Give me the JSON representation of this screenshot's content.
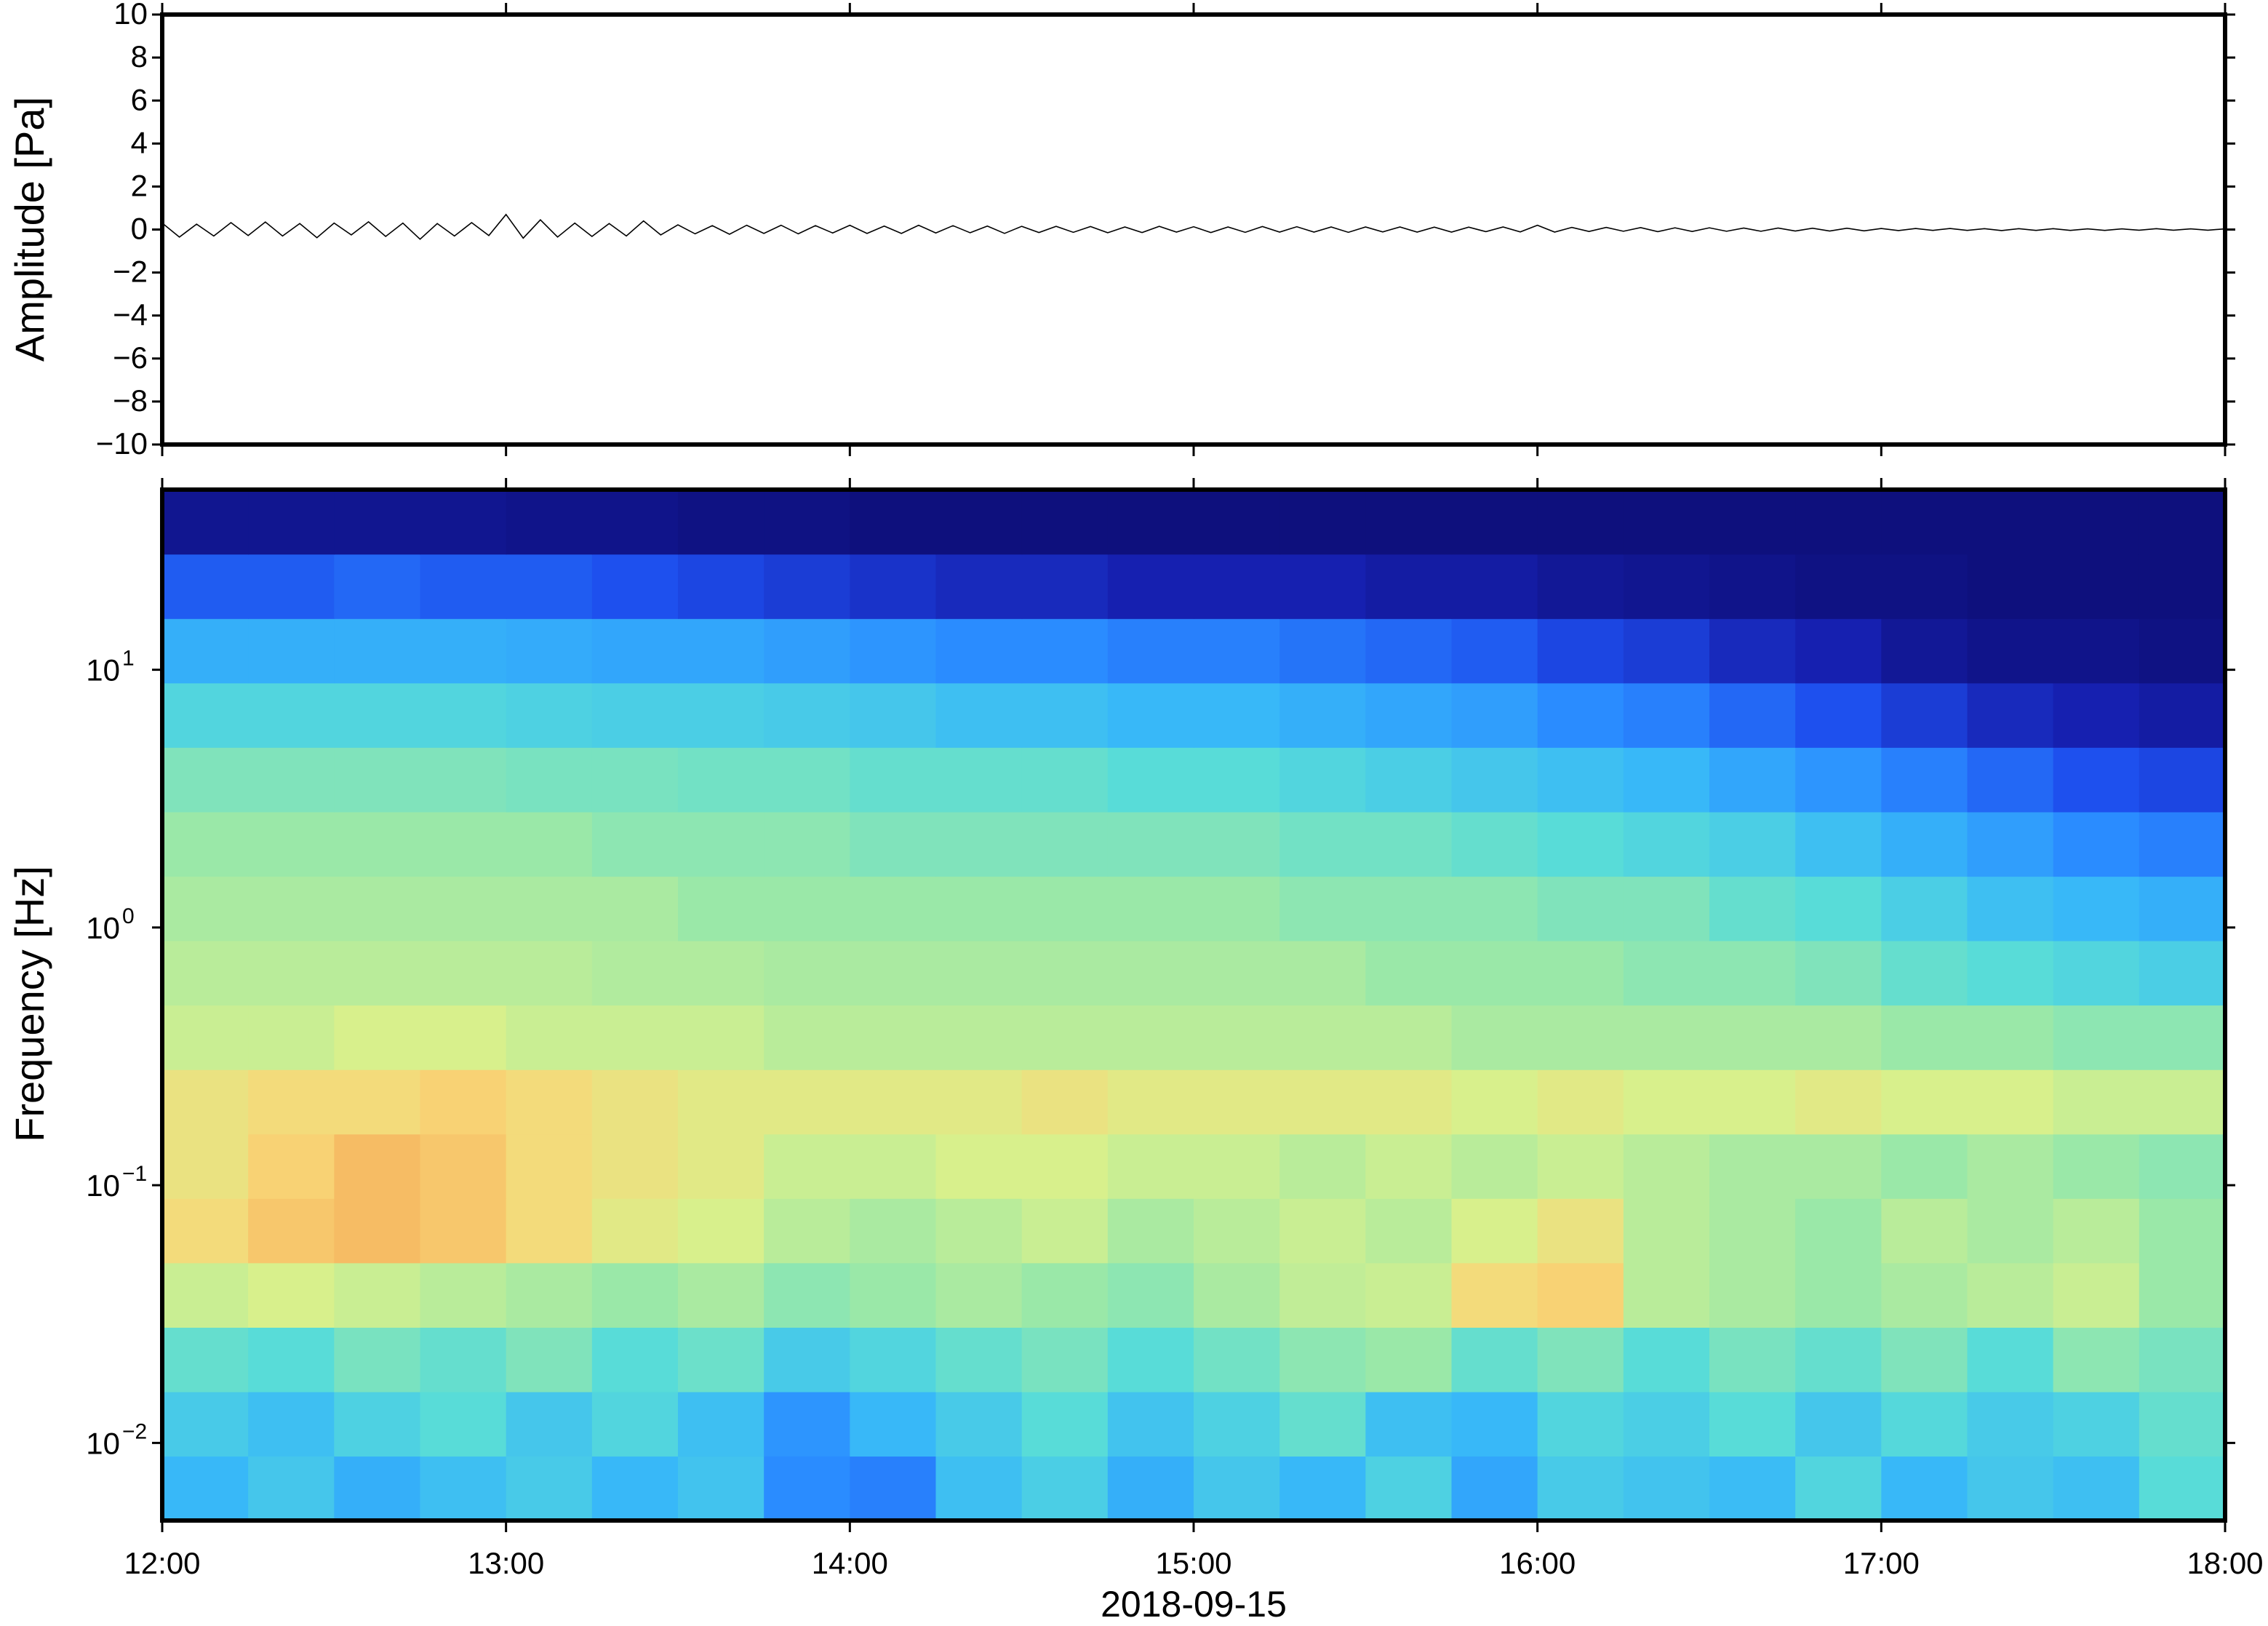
{
  "chart_data": [
    {
      "type": "line",
      "ylabel": "Amplitude [Pa]",
      "xlim": [
        12,
        18
      ],
      "xticks": [
        12,
        13,
        14,
        15,
        16,
        17,
        18
      ],
      "ylim": [
        -10,
        10
      ],
      "yticks": [
        {
          "value": -10,
          "label": "−10"
        },
        {
          "value": -8,
          "label": "−8"
        },
        {
          "value": -6,
          "label": "−6"
        },
        {
          "value": -4,
          "label": "−4"
        },
        {
          "value": -2,
          "label": "−2"
        },
        0,
        2,
        4,
        6,
        8,
        10
      ],
      "series": [
        {
          "color": "#000000",
          "x": [
            12,
            12.05,
            12.1,
            12.15,
            12.2,
            12.25,
            12.3,
            12.35,
            12.4,
            12.45,
            12.5,
            12.55,
            12.6,
            12.65,
            12.7,
            12.75,
            12.8,
            12.85,
            12.9,
            12.95,
            13,
            13.05,
            13.1,
            13.15,
            13.2,
            13.25,
            13.3,
            13.35,
            13.4,
            13.45,
            13.5,
            13.55,
            13.6,
            13.65,
            13.7,
            13.75,
            13.8,
            13.85,
            13.9,
            13.95,
            14,
            14.05,
            14.1,
            14.15,
            14.2,
            14.25,
            14.3,
            14.35,
            14.4,
            14.45,
            14.5,
            14.55,
            14.6,
            14.65,
            14.7,
            14.75,
            14.8,
            14.85,
            14.9,
            14.95,
            15,
            15.05,
            15.1,
            15.15,
            15.2,
            15.25,
            15.3,
            15.35,
            15.4,
            15.45,
            15.5,
            15.55,
            15.6,
            15.65,
            15.7,
            15.75,
            15.8,
            15.85,
            15.9,
            15.95,
            16,
            16.05,
            16.1,
            16.15,
            16.2,
            16.25,
            16.3,
            16.35,
            16.4,
            16.45,
            16.5,
            16.55,
            16.6,
            16.65,
            16.7,
            16.75,
            16.8,
            16.85,
            16.9,
            16.95,
            17,
            17.05,
            17.1,
            17.15,
            17.2,
            17.25,
            17.3,
            17.35,
            17.4,
            17.45,
            17.5,
            17.55,
            17.6,
            17.65,
            17.7,
            17.75,
            17.8,
            17.85,
            17.9,
            17.95,
            18
          ],
          "values": [
            0.3,
            -0.35,
            0.25,
            -0.3,
            0.32,
            -0.28,
            0.35,
            -0.3,
            0.28,
            -0.38,
            0.3,
            -0.25,
            0.36,
            -0.32,
            0.3,
            -0.45,
            0.28,
            -0.3,
            0.32,
            -0.28,
            0.7,
            -0.4,
            0.45,
            -0.35,
            0.3,
            -0.32,
            0.28,
            -0.3,
            0.4,
            -0.25,
            0.22,
            -0.2,
            0.18,
            -0.22,
            0.2,
            -0.18,
            0.2,
            -0.2,
            0.18,
            -0.16,
            0.2,
            -0.18,
            0.16,
            -0.18,
            0.2,
            -0.16,
            0.18,
            -0.15,
            0.16,
            -0.18,
            0.15,
            -0.14,
            0.15,
            -0.13,
            0.14,
            -0.15,
            0.12,
            -0.14,
            0.15,
            -0.12,
            0.13,
            -0.14,
            0.12,
            -0.13,
            0.14,
            -0.12,
            0.13,
            -0.12,
            0.12,
            -0.13,
            0.12,
            -0.11,
            0.12,
            -0.12,
            0.11,
            -0.12,
            0.11,
            -0.1,
            0.12,
            -0.11,
            0.2,
            -0.12,
            0.1,
            -0.09,
            0.1,
            -0.08,
            0.09,
            -0.1,
            0.08,
            -0.09,
            0.08,
            -0.08,
            0.07,
            -0.08,
            0.07,
            -0.07,
            0.06,
            -0.07,
            0.06,
            -0.06,
            0.05,
            -0.05,
            0.05,
            -0.04,
            0.05,
            -0.04,
            0.04,
            -0.05,
            0.04,
            -0.04,
            0.04,
            -0.04,
            0.03,
            -0.04,
            0.03,
            -0.03,
            0.04,
            -0.03,
            0.03,
            -0.03,
            0.03
          ]
        }
      ]
    },
    {
      "type": "heatmap",
      "xlabel": "2018-09-15",
      "ylabel": "Frequency [Hz]",
      "xlim": [
        12,
        18
      ],
      "xticks": [
        {
          "value": 12,
          "label": "12:00"
        },
        {
          "value": 13,
          "label": "13:00"
        },
        {
          "value": 14,
          "label": "14:00"
        },
        {
          "value": 15,
          "label": "15:00"
        },
        {
          "value": 16,
          "label": "16:00"
        },
        {
          "value": 17,
          "label": "17:00"
        },
        {
          "value": 18,
          "label": "18:00"
        }
      ],
      "ylim": [
        0.005,
        50
      ],
      "log_y": true,
      "yticks": [
        {
          "value": 0.01,
          "label": "10",
          "exponent": "−2"
        },
        {
          "value": 0.1,
          "label": "10",
          "exponent": "−1"
        },
        {
          "value": 1,
          "label": "10",
          "exponent": "0"
        },
        {
          "value": 10,
          "label": "10",
          "exponent": "1"
        }
      ],
      "x_edges": [
        12,
        12.25,
        12.5,
        12.75,
        13,
        13.25,
        13.5,
        13.75,
        14,
        14.25,
        14.5,
        14.75,
        15,
        15.25,
        15.5,
        15.75,
        16,
        16.25,
        16.5,
        16.75,
        17,
        17.25,
        17.5,
        17.75,
        18
      ],
      "y_edges": [
        0.005,
        0.00889,
        0.0158,
        0.0281,
        0.05,
        0.0889,
        0.158,
        0.281,
        0.5,
        0.889,
        1.58,
        2.81,
        5,
        8.89,
        15.8,
        28.1,
        50
      ],
      "zlim": [
        0,
        1
      ],
      "colorscale": [
        [
          0,
          "#0c0c70"
        ],
        [
          0.1,
          "#1620b0"
        ],
        [
          0.2,
          "#1e50ee"
        ],
        [
          0.3,
          "#2a8cff"
        ],
        [
          0.4,
          "#38b8f8"
        ],
        [
          0.5,
          "#58dcd8"
        ],
        [
          0.6,
          "#9ae8a8"
        ],
        [
          0.68,
          "#d8f08c"
        ],
        [
          0.75,
          "#f8d878"
        ],
        [
          0.85,
          "#f4a050"
        ],
        [
          1,
          "#e05030"
        ]
      ],
      "z": [
        [
          0.4,
          0.44,
          0.38,
          0.42,
          0.45,
          0.4,
          0.43,
          0.3,
          0.28,
          0.42,
          0.46,
          0.38,
          0.44,
          0.4,
          0.47,
          0.36,
          0.45,
          0.43,
          0.41,
          0.48,
          0.4,
          0.44,
          0.42,
          0.5
        ],
        [
          0.45,
          0.42,
          0.47,
          0.5,
          0.44,
          0.48,
          0.42,
          0.32,
          0.4,
          0.45,
          0.5,
          0.43,
          0.47,
          0.52,
          0.42,
          0.4,
          0.48,
          0.46,
          0.5,
          0.44,
          0.49,
          0.45,
          0.47,
          0.52
        ],
        [
          0.52,
          0.5,
          0.55,
          0.52,
          0.56,
          0.5,
          0.53,
          0.45,
          0.48,
          0.52,
          0.55,
          0.5,
          0.54,
          0.58,
          0.6,
          0.52,
          0.56,
          0.5,
          0.55,
          0.52,
          0.56,
          0.5,
          0.58,
          0.55
        ],
        [
          0.66,
          0.68,
          0.66,
          0.64,
          0.62,
          0.6,
          0.62,
          0.58,
          0.6,
          0.62,
          0.6,
          0.58,
          0.62,
          0.65,
          0.66,
          0.74,
          0.76,
          0.64,
          0.62,
          0.6,
          0.62,
          0.64,
          0.66,
          0.6
        ],
        [
          0.74,
          0.78,
          0.8,
          0.78,
          0.74,
          0.7,
          0.68,
          0.64,
          0.62,
          0.64,
          0.66,
          0.62,
          0.64,
          0.66,
          0.64,
          0.68,
          0.72,
          0.64,
          0.62,
          0.6,
          0.64,
          0.62,
          0.64,
          0.6
        ],
        [
          0.72,
          0.76,
          0.8,
          0.78,
          0.74,
          0.72,
          0.7,
          0.66,
          0.66,
          0.68,
          0.68,
          0.66,
          0.66,
          0.64,
          0.66,
          0.64,
          0.66,
          0.64,
          0.62,
          0.62,
          0.6,
          0.62,
          0.6,
          0.58
        ],
        [
          0.72,
          0.74,
          0.74,
          0.76,
          0.74,
          0.72,
          0.7,
          0.7,
          0.7,
          0.7,
          0.72,
          0.7,
          0.7,
          0.7,
          0.7,
          0.68,
          0.7,
          0.68,
          0.68,
          0.7,
          0.68,
          0.68,
          0.66,
          0.66
        ],
        [
          0.66,
          0.66,
          0.68,
          0.68,
          0.66,
          0.66,
          0.66,
          0.64,
          0.64,
          0.64,
          0.64,
          0.64,
          0.64,
          0.64,
          0.64,
          0.62,
          0.62,
          0.62,
          0.62,
          0.62,
          0.6,
          0.6,
          0.58,
          0.58
        ],
        [
          0.64,
          0.64,
          0.64,
          0.64,
          0.64,
          0.63,
          0.63,
          0.62,
          0.62,
          0.62,
          0.62,
          0.62,
          0.62,
          0.62,
          0.6,
          0.6,
          0.6,
          0.58,
          0.58,
          0.56,
          0.52,
          0.5,
          0.48,
          0.46
        ],
        [
          0.62,
          0.62,
          0.62,
          0.62,
          0.62,
          0.62,
          0.6,
          0.6,
          0.6,
          0.6,
          0.6,
          0.6,
          0.6,
          0.58,
          0.58,
          0.58,
          0.56,
          0.56,
          0.52,
          0.5,
          0.46,
          0.42,
          0.4,
          0.38
        ],
        [
          0.6,
          0.6,
          0.6,
          0.6,
          0.6,
          0.58,
          0.58,
          0.58,
          0.56,
          0.56,
          0.56,
          0.56,
          0.56,
          0.54,
          0.54,
          0.52,
          0.5,
          0.48,
          0.46,
          0.42,
          0.38,
          0.34,
          0.3,
          0.28
        ],
        [
          0.56,
          0.56,
          0.56,
          0.56,
          0.55,
          0.55,
          0.54,
          0.54,
          0.52,
          0.52,
          0.52,
          0.5,
          0.5,
          0.48,
          0.46,
          0.44,
          0.42,
          0.4,
          0.36,
          0.32,
          0.28,
          0.24,
          0.2,
          0.18
        ],
        [
          0.48,
          0.48,
          0.48,
          0.48,
          0.47,
          0.46,
          0.46,
          0.45,
          0.44,
          0.42,
          0.42,
          0.4,
          0.4,
          0.38,
          0.36,
          0.34,
          0.3,
          0.28,
          0.24,
          0.2,
          0.16,
          0.12,
          0.1,
          0.08
        ],
        [
          0.38,
          0.38,
          0.38,
          0.38,
          0.37,
          0.36,
          0.36,
          0.34,
          0.32,
          0.3,
          0.3,
          0.28,
          0.28,
          0.26,
          0.24,
          0.22,
          0.18,
          0.16,
          0.12,
          0.1,
          0.06,
          0.04,
          0.04,
          0.03
        ],
        [
          0.22,
          0.22,
          0.24,
          0.22,
          0.22,
          0.2,
          0.18,
          0.16,
          0.14,
          0.12,
          0.12,
          0.1,
          0.1,
          0.1,
          0.08,
          0.08,
          0.06,
          0.05,
          0.04,
          0.03,
          0.03,
          0.02,
          0.02,
          0.02
        ],
        [
          0.05,
          0.05,
          0.05,
          0.05,
          0.04,
          0.04,
          0.03,
          0.03,
          0.02,
          0.02,
          0.02,
          0.02,
          0.02,
          0.02,
          0.02,
          0.02,
          0.02,
          0.02,
          0.02,
          0.02,
          0.02,
          0.02,
          0.02,
          0.02
        ]
      ]
    }
  ]
}
